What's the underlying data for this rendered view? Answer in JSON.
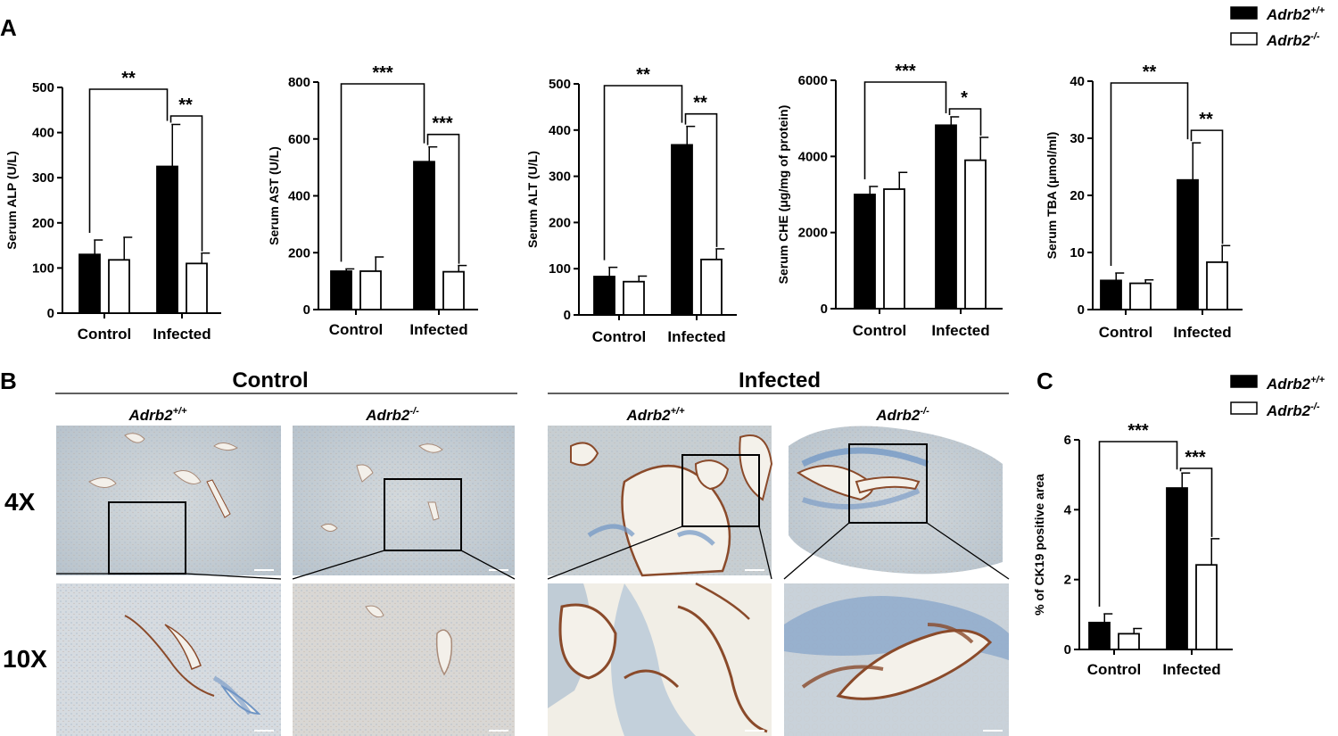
{
  "panels": {
    "a": "A",
    "b": "B",
    "c": "C"
  },
  "legend": {
    "wt": {
      "base": "Adrb2",
      "sup": "+/+",
      "color": "#000000"
    },
    "ko": {
      "base": "Adrb2",
      "sup": "-/-",
      "color": "#ffffff"
    }
  },
  "histology": {
    "groups": [
      "Control",
      "Infected"
    ],
    "genotypes": [
      {
        "base": "Adrb2",
        "sup": "+/+"
      },
      {
        "base": "Adrb2",
        "sup": "-/-"
      },
      {
        "base": "Adrb2",
        "sup": "+/+"
      },
      {
        "base": "Adrb2",
        "sup": "-/-"
      }
    ],
    "magnifications": [
      "4X",
      "10X"
    ],
    "colors": {
      "tissue": "#c8cfd6",
      "stain_blue": "#6f95c4",
      "stain_brown": "#8a4a2a",
      "lumen": "#f4f1ea"
    }
  },
  "chart_data": [
    {
      "type": "bar",
      "ylabel": "Serum ALP (U/L)",
      "categories": [
        "Control",
        "Infected"
      ],
      "ylim": [
        0,
        500
      ],
      "yticks": [
        "0",
        "100",
        "200",
        "300",
        "400",
        "500"
      ],
      "series": [
        {
          "name": "Adrb2+/+",
          "values": [
            130,
            325
          ],
          "errors": [
            32,
            93
          ]
        },
        {
          "name": "Adrb2-/-",
          "values": [
            118,
            110
          ],
          "errors": [
            50,
            23
          ]
        }
      ],
      "significance": [
        {
          "label": "**",
          "between": "Control WT vs Infected WT"
        },
        {
          "label": "**",
          "between": "Infected WT vs Infected KO"
        }
      ]
    },
    {
      "type": "bar",
      "ylabel": "Serum AST (U/L)",
      "categories": [
        "Control",
        "Infected"
      ],
      "ylim": [
        0,
        800
      ],
      "yticks": [
        "0",
        "200",
        "400",
        "600",
        "800"
      ],
      "series": [
        {
          "name": "Adrb2+/+",
          "values": [
            135,
            520
          ],
          "errors": [
            8,
            52
          ]
        },
        {
          "name": "Adrb2-/-",
          "values": [
            135,
            133
          ],
          "errors": [
            50,
            22
          ]
        }
      ],
      "significance": [
        {
          "label": "***",
          "between": "Control WT vs Infected WT"
        },
        {
          "label": "***",
          "between": "Infected WT vs Infected KO"
        }
      ]
    },
    {
      "type": "bar",
      "ylabel": "Serum ALT (U/L)",
      "categories": [
        "Control",
        "Infected"
      ],
      "ylim": [
        0,
        500
      ],
      "yticks": [
        "0",
        "100",
        "200",
        "300",
        "400",
        "500"
      ],
      "series": [
        {
          "name": "Adrb2+/+",
          "values": [
            83,
            368
          ],
          "errors": [
            20,
            40
          ]
        },
        {
          "name": "Adrb2-/-",
          "values": [
            72,
            120
          ],
          "errors": [
            12,
            23
          ]
        }
      ],
      "significance": [
        {
          "label": "**",
          "between": "Control WT vs Infected WT"
        },
        {
          "label": "**",
          "between": "Infected WT vs Infected KO"
        }
      ]
    },
    {
      "type": "bar",
      "ylabel": "Serum CHE (μg/mg of protein)",
      "categories": [
        "Control",
        "Infected"
      ],
      "ylim": [
        0,
        6000
      ],
      "yticks": [
        "0",
        "2000",
        "4000",
        "6000"
      ],
      "series": [
        {
          "name": "Adrb2+/+",
          "values": [
            3000,
            4820
          ],
          "errors": [
            210,
            220
          ]
        },
        {
          "name": "Adrb2-/-",
          "values": [
            3140,
            3900
          ],
          "errors": [
            440,
            600
          ]
        }
      ],
      "significance": [
        {
          "label": "***",
          "between": "Control WT vs Infected WT"
        },
        {
          "label": "*",
          "between": "Infected WT vs Infected KO"
        }
      ]
    },
    {
      "type": "bar",
      "ylabel": "Serum TBA (μmol/ml)",
      "categories": [
        "Control",
        "Infected"
      ],
      "ylim": [
        0,
        40
      ],
      "yticks": [
        "0",
        "10",
        "20",
        "30",
        "40"
      ],
      "series": [
        {
          "name": "Adrb2+/+",
          "values": [
            5.1,
            22.7
          ],
          "errors": [
            1.3,
            6.5
          ]
        },
        {
          "name": "Adrb2-/-",
          "values": [
            4.6,
            8.3
          ],
          "errors": [
            0.6,
            2.9
          ]
        }
      ],
      "significance": [
        {
          "label": "**",
          "between": "Control WT vs Infected WT"
        },
        {
          "label": "**",
          "between": "Infected WT vs Infected KO"
        }
      ]
    },
    {
      "type": "bar",
      "ylabel": "% of CK19 positive area",
      "categories": [
        "Control",
        "Infected"
      ],
      "ylim": [
        0,
        6
      ],
      "yticks": [
        "0",
        "2",
        "4",
        "6"
      ],
      "series": [
        {
          "name": "Adrb2+/+",
          "values": [
            0.77,
            4.62
          ],
          "errors": [
            0.25,
            0.43
          ]
        },
        {
          "name": "Adrb2-/-",
          "values": [
            0.45,
            2.42
          ],
          "errors": [
            0.15,
            0.75
          ]
        }
      ],
      "significance": [
        {
          "label": "***",
          "between": "Control WT vs Infected WT"
        },
        {
          "label": "***",
          "between": "Infected WT vs Infected KO"
        }
      ]
    }
  ]
}
